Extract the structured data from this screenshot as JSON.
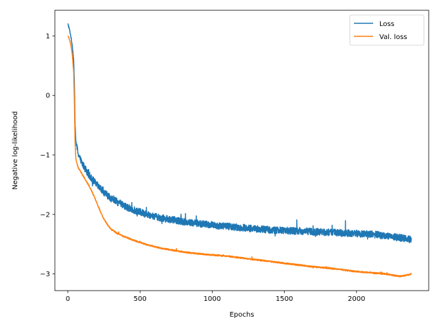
{
  "chart_data": {
    "type": "line",
    "title": "",
    "xlabel": "Epochs",
    "ylabel": "Negative log-likelihood",
    "xlim": [
      -90,
      2500
    ],
    "ylim": [
      -3.28,
      1.43
    ],
    "xticks": [
      0,
      500,
      1000,
      1500,
      2000
    ],
    "xtick_labels": [
      "0",
      "500",
      "1000",
      "1500",
      "2000"
    ],
    "yticks": [
      1,
      0,
      -1,
      -2,
      -3
    ],
    "ytick_labels": [
      "1",
      "0",
      "−1",
      "−2",
      "−3"
    ],
    "grid": false,
    "legend_position": "top-right",
    "series": [
      {
        "name": "Loss",
        "color": "#1f77b4",
        "noise": 0.06,
        "x": [
          0,
          10,
          20,
          30,
          40,
          45,
          50,
          55,
          60,
          70,
          80,
          100,
          125,
          150,
          200,
          250,
          300,
          350,
          400,
          450,
          500,
          550,
          600,
          650,
          700,
          800,
          900,
          1000,
          1100,
          1200,
          1300,
          1400,
          1500,
          1600,
          1700,
          1800,
          1900,
          2000,
          2100,
          2200,
          2300,
          2380
        ],
        "y": [
          1.2,
          1.12,
          1.0,
          0.85,
          0.6,
          0.2,
          -0.5,
          -0.75,
          -0.85,
          -0.95,
          -1.05,
          -1.15,
          -1.25,
          -1.35,
          -1.5,
          -1.63,
          -1.73,
          -1.8,
          -1.87,
          -1.92,
          -1.96,
          -2.0,
          -2.03,
          -2.06,
          -2.08,
          -2.12,
          -2.15,
          -2.18,
          -2.2,
          -2.22,
          -2.24,
          -2.26,
          -2.27,
          -2.28,
          -2.29,
          -2.3,
          -2.31,
          -2.32,
          -2.33,
          -2.36,
          -2.39,
          -2.42
        ]
      },
      {
        "name": "Val. loss",
        "color": "#ff7f0e",
        "noise": 0.012,
        "x": [
          0,
          10,
          20,
          30,
          40,
          45,
          50,
          55,
          60,
          70,
          80,
          100,
          125,
          150,
          175,
          200,
          225,
          250,
          275,
          300,
          350,
          400,
          450,
          500,
          550,
          600,
          650,
          700,
          800,
          900,
          1000,
          1100,
          1200,
          1300,
          1400,
          1500,
          1600,
          1700,
          1800,
          1900,
          2000,
          2100,
          2200,
          2250,
          2300,
          2350,
          2380
        ],
        "y": [
          1.0,
          0.95,
          0.85,
          0.7,
          0.4,
          -0.1,
          -0.8,
          -1.05,
          -1.12,
          -1.2,
          -1.25,
          -1.33,
          -1.43,
          -1.53,
          -1.66,
          -1.8,
          -1.95,
          -2.08,
          -2.17,
          -2.25,
          -2.33,
          -2.38,
          -2.43,
          -2.47,
          -2.51,
          -2.54,
          -2.57,
          -2.59,
          -2.63,
          -2.66,
          -2.68,
          -2.7,
          -2.73,
          -2.76,
          -2.79,
          -2.82,
          -2.85,
          -2.88,
          -2.9,
          -2.93,
          -2.96,
          -2.98,
          -3.0,
          -3.02,
          -3.04,
          -3.02,
          -3.0
        ]
      }
    ]
  }
}
